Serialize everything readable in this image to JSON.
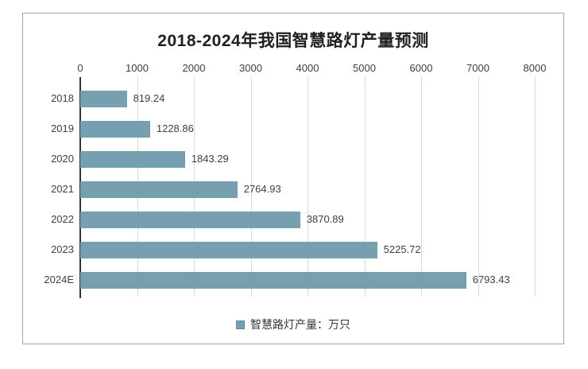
{
  "chart_data": {
    "type": "bar",
    "orientation": "horizontal",
    "title": "2018-2024年我国智慧路灯产量预测",
    "categories": [
      "2018",
      "2019",
      "2020",
      "2021",
      "2022",
      "2023",
      "2024E"
    ],
    "series": [
      {
        "name": "智慧路灯产量：万只",
        "values": [
          819.24,
          1228.86,
          1843.29,
          2764.93,
          3870.89,
          5225.72,
          6793.43
        ]
      }
    ],
    "value_labels": [
      "819.24",
      "1228.86",
      "1843.29",
      "2764.93",
      "3870.89",
      "5225.72",
      "6793.43"
    ],
    "x_axis": {
      "position": "top",
      "min": 0,
      "max": 8000,
      "tick_step": 1000,
      "tick_labels": [
        "0",
        "1000",
        "2000",
        "3000",
        "4000",
        "5000",
        "6000",
        "7000",
        "8000"
      ],
      "grid": true
    },
    "legend": {
      "position": "bottom",
      "label": "智慧路灯产量：万只"
    },
    "colors": {
      "bar": "#76a0af",
      "gridline": "#d9d9d9",
      "axis_line": "#333333",
      "text": "#404040",
      "title": "#1f1f1f",
      "frame_border": "#a6a6a6"
    }
  }
}
